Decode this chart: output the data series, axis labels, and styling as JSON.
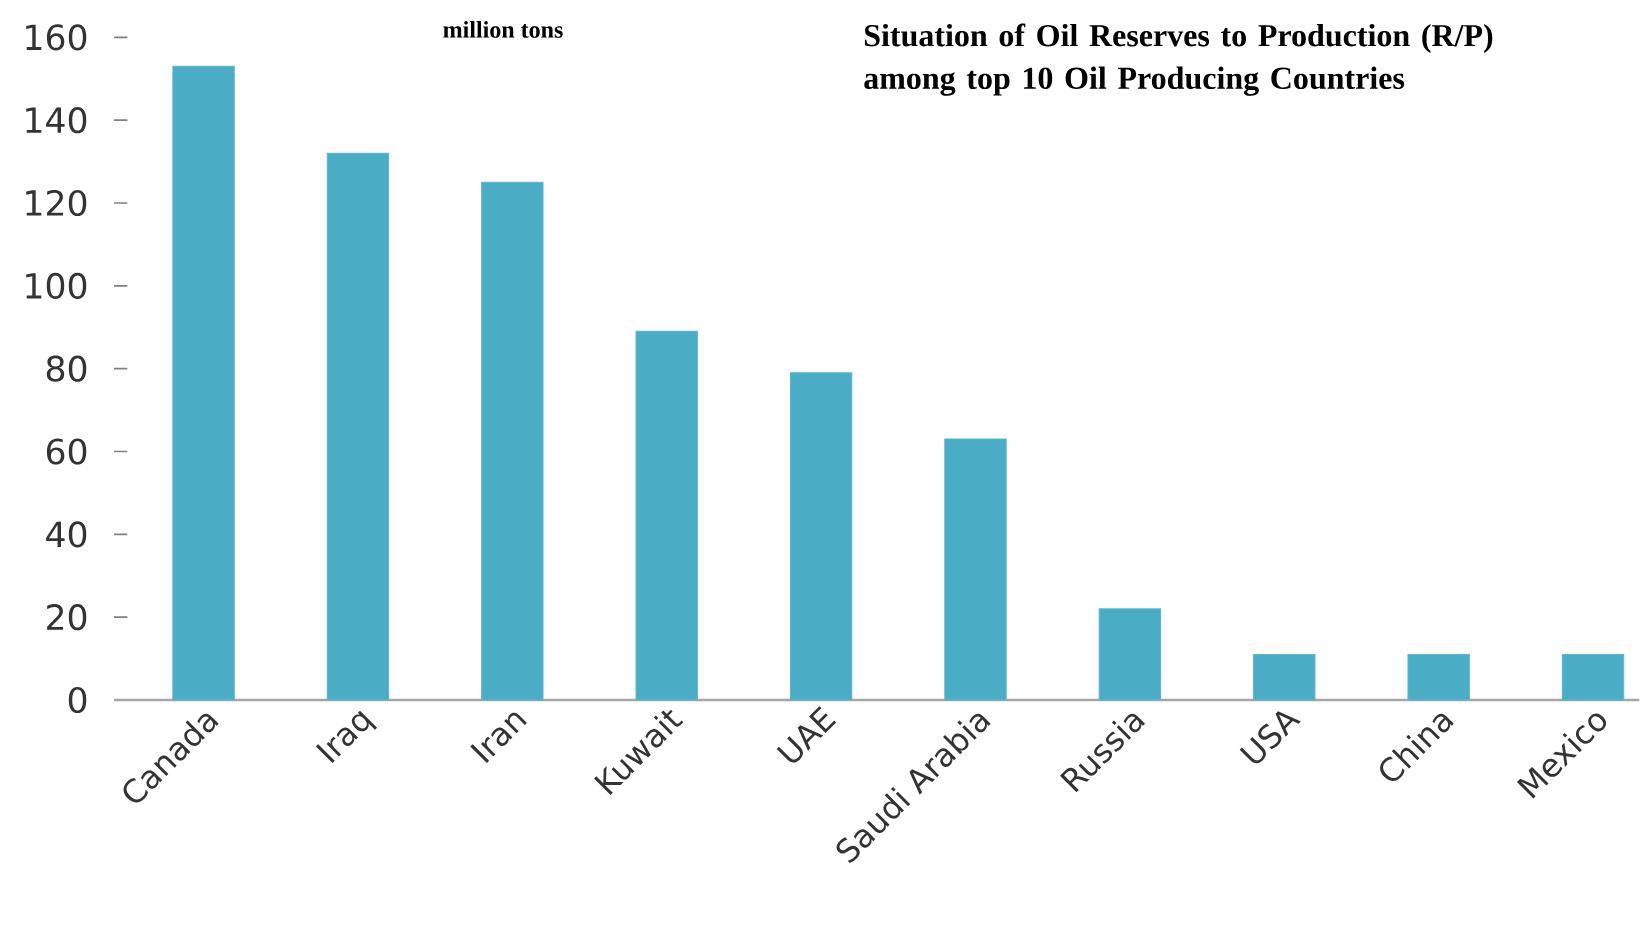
{
  "chart_data": {
    "type": "bar",
    "title": "Situation of Oil Reserves to Production (R/P) among top 10 Oil Producing Countries",
    "ylabel": "million tons",
    "categories": [
      "Canada",
      "Iraq",
      "Iran",
      "Kuwait",
      "UAE",
      "Saudi Arabia",
      "Russia",
      "USA",
      "China",
      "Mexico"
    ],
    "values": [
      153,
      132,
      125,
      89,
      79,
      63,
      22,
      11,
      11,
      11
    ],
    "color": "#4bacc6",
    "ylim": [
      0,
      160
    ],
    "yticks": [
      0,
      20,
      40,
      60,
      80,
      100,
      120,
      140,
      160
    ],
    "grid": false
  }
}
